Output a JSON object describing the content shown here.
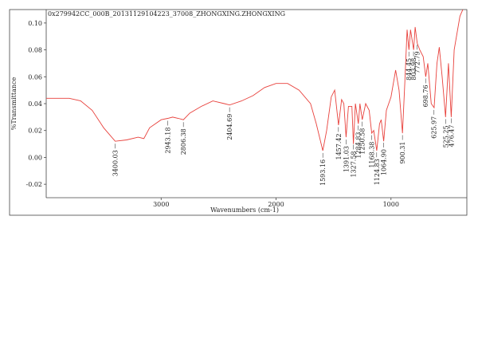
{
  "chart_data": {
    "type": "line",
    "title": "0x279942CC_000B_20131129104223_37008_ZHONGXING.ZHONGXING",
    "x_label": "Wavenumbers (cm-1)",
    "y_label": "%Transmittance",
    "xlim": [
      4000,
      340
    ],
    "ylim": [
      -0.03,
      0.11
    ],
    "xticks": [
      3000,
      2000,
      1000
    ],
    "yticks": [
      {
        "value": 0.1,
        "label": "0.10"
      },
      {
        "value": 0.08,
        "label": "0.08"
      },
      {
        "value": 0.06,
        "label": "0.06"
      },
      {
        "value": 0.04,
        "label": "0.04"
      },
      {
        "value": 0.02,
        "label": "0.02"
      },
      {
        "value": 0.0,
        "label": "0.00"
      },
      {
        "value": -0.02,
        "label": "-0.02"
      }
    ],
    "series": [
      {
        "color": "#e8413c",
        "x": [
          4000,
          3800,
          3700,
          3600,
          3500,
          3400,
          3300,
          3200,
          3150,
          3100,
          3000,
          2943,
          2900,
          2850,
          2806,
          2750,
          2650,
          2550,
          2450,
          2404,
          2300,
          2200,
          2100,
          2000,
          1900,
          1800,
          1700,
          1650,
          1593,
          1560,
          1520,
          1490,
          1457,
          1430,
          1410,
          1391,
          1370,
          1340,
          1327,
          1310,
          1284,
          1270,
          1250,
          1220,
          1190,
          1168,
          1150,
          1124,
          1100,
          1085,
          1064,
          1040,
          1000,
          960,
          930,
          900,
          880,
          860,
          844,
          830,
          803,
          790,
          772,
          750,
          720,
          698,
          680,
          650,
          625,
          600,
          580,
          555,
          525,
          500,
          476,
          450,
          400,
          350
        ],
        "values": [
          0.044,
          0.044,
          0.042,
          0.035,
          0.022,
          0.012,
          0.013,
          0.015,
          0.014,
          0.022,
          0.028,
          0.029,
          0.03,
          0.029,
          0.028,
          0.033,
          0.038,
          0.042,
          0.04,
          0.039,
          0.042,
          0.046,
          0.052,
          0.055,
          0.055,
          0.05,
          0.04,
          0.025,
          0.005,
          0.02,
          0.045,
          0.05,
          0.024,
          0.043,
          0.04,
          0.015,
          0.038,
          0.038,
          0.01,
          0.04,
          0.025,
          0.04,
          0.028,
          0.04,
          0.035,
          0.018,
          0.02,
          0.005,
          0.025,
          0.028,
          0.012,
          0.035,
          0.045,
          0.065,
          0.05,
          0.018,
          0.055,
          0.095,
          0.08,
          0.095,
          0.08,
          0.097,
          0.085,
          0.08,
          0.075,
          0.06,
          0.07,
          0.04,
          0.037,
          0.07,
          0.082,
          0.06,
          0.03,
          0.07,
          0.03,
          0.08,
          0.105,
          0.115
        ]
      }
    ],
    "annotations": [
      {
        "value": 3400.03,
        "label": "3400.03"
      },
      {
        "value": 2943.18,
        "label": "2943.18"
      },
      {
        "value": 2806.38,
        "label": "2806.38"
      },
      {
        "value": 2404.69,
        "label": "2404.69"
      },
      {
        "value": 1593.16,
        "label": "1593.16"
      },
      {
        "value": 1457.42,
        "label": "1457.42"
      },
      {
        "value": 1391.03,
        "label": "1391.03"
      },
      {
        "value": 1327.58,
        "label": "1327.58"
      },
      {
        "value": 1284.83,
        "label": "1284.83"
      },
      {
        "value": 1250.58,
        "label": "1250.58"
      },
      {
        "value": 1168.38,
        "label": "1168.38"
      },
      {
        "value": 1124.83,
        "label": "1124.83"
      },
      {
        "value": 1064.9,
        "label": "1064.90"
      },
      {
        "value": 900.31,
        "label": "900.31"
      },
      {
        "value": 844.45,
        "label": "844.45"
      },
      {
        "value": 803.98,
        "label": "803.98"
      },
      {
        "value": 772.79,
        "label": "772.79"
      },
      {
        "value": 698.76,
        "label": "698.76"
      },
      {
        "value": 625.97,
        "label": "625.97"
      },
      {
        "value": 525.25,
        "label": "525.25"
      },
      {
        "value": 476.47,
        "label": "476.47"
      }
    ]
  }
}
